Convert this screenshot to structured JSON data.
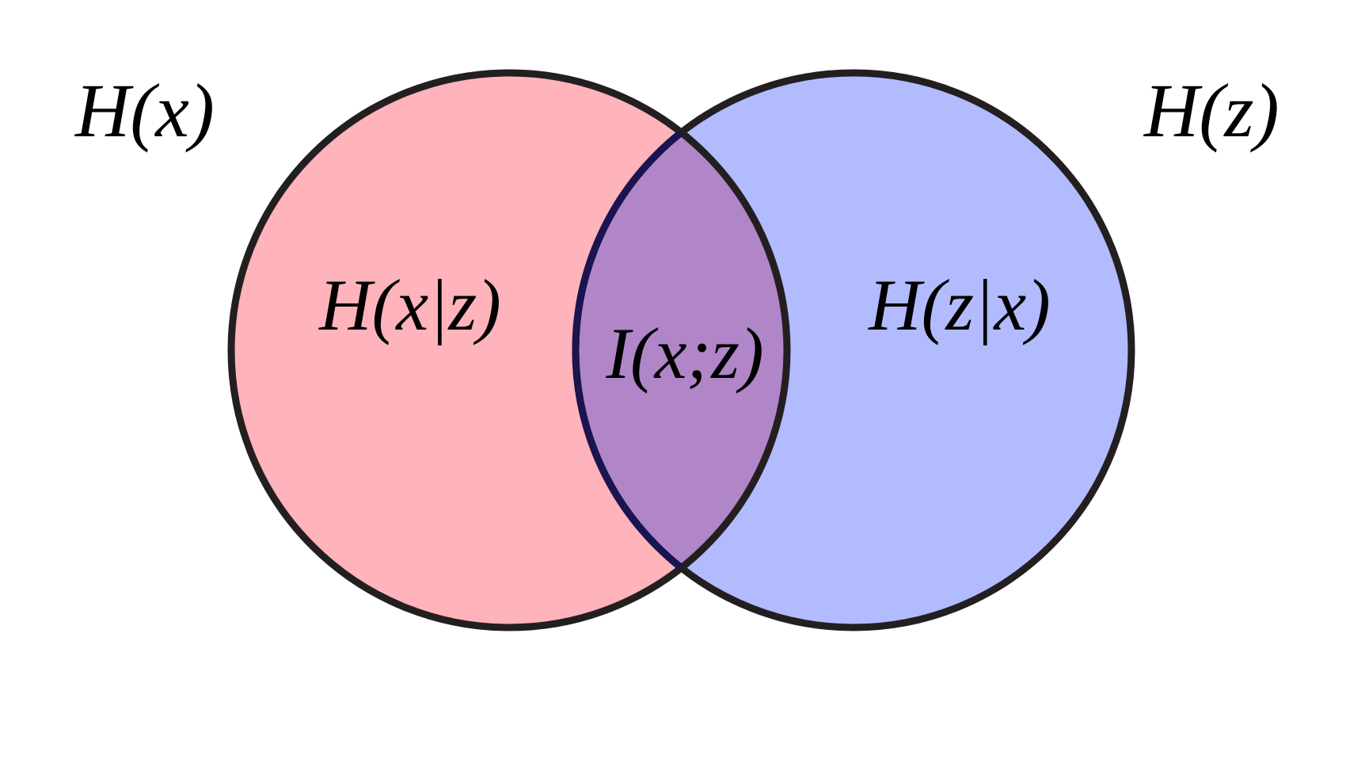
{
  "diagram": {
    "sets": [
      {
        "id": "x",
        "label": "H(x)",
        "fill": "#ffb3ba",
        "stroke": "#231f20"
      },
      {
        "id": "z",
        "label": "H(z)",
        "fill": "#b3bbff",
        "stroke": "#231f20"
      }
    ],
    "regions": {
      "x_only": "H(x|z)",
      "z_only": "H(z|x)",
      "overlap": "I(x;z)"
    },
    "overlap_fill": "#b086c8",
    "overlap_stroke": "#1a1450"
  }
}
